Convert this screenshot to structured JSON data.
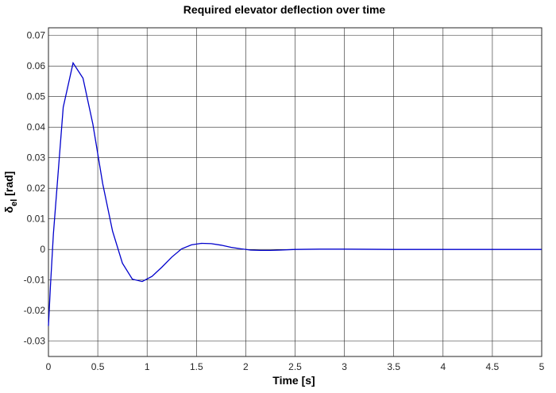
{
  "chart_data": {
    "type": "line",
    "title": "Required elevator deflection over time",
    "xlabel": "Time [s]",
    "ylabel_main": "δ",
    "ylabel_sub": "el",
    "ylabel_unit": " [rad]",
    "xlim": [
      0,
      5
    ],
    "ylim": [
      -0.035,
      0.0725
    ],
    "xticks": [
      0,
      0.5,
      1,
      1.5,
      2,
      2.5,
      3,
      3.5,
      4,
      4.5,
      5
    ],
    "xtick_labels": [
      "0",
      "0.5",
      "1",
      "1.5",
      "2",
      "2.5",
      "3",
      "3.5",
      "4",
      "4.5",
      "5"
    ],
    "yticks": [
      -0.03,
      -0.02,
      -0.01,
      0,
      0.01,
      0.02,
      0.03,
      0.04,
      0.05,
      0.06,
      0.07
    ],
    "ytick_labels": [
      "-0.03",
      "-0.02",
      "-0.01",
      "0",
      "0.01",
      "0.02",
      "0.03",
      "0.04",
      "0.05",
      "0.06",
      "0.07"
    ],
    "grid": true,
    "line_color": "#0000cc",
    "series": [
      {
        "x": [
          0,
          0.02,
          0.05,
          0.15,
          0.25,
          0.35,
          0.45,
          0.55,
          0.65,
          0.75,
          0.85,
          0.95,
          1.05,
          1.15,
          1.25,
          1.35,
          1.45,
          1.55,
          1.65,
          1.75,
          1.85,
          1.95,
          2.05,
          2.15,
          2.25,
          2.35,
          2.5,
          2.75,
          3.0,
          3.5,
          4.0,
          4.5,
          5.0
        ],
        "y": [
          -0.025,
          -0.012,
          0.005,
          0.0465,
          0.061,
          0.056,
          0.041,
          0.0215,
          0.006,
          -0.0045,
          -0.0097,
          -0.0105,
          -0.0088,
          -0.0058,
          -0.0025,
          0.0002,
          0.0015,
          0.002,
          0.0019,
          0.0014,
          0.0007,
          0.0002,
          -0.0002,
          -0.0003,
          -0.0003,
          -0.0002,
          0.0,
          0.0001,
          0.0001,
          0.0,
          0.0,
          0.0,
          0.0
        ]
      }
    ]
  }
}
